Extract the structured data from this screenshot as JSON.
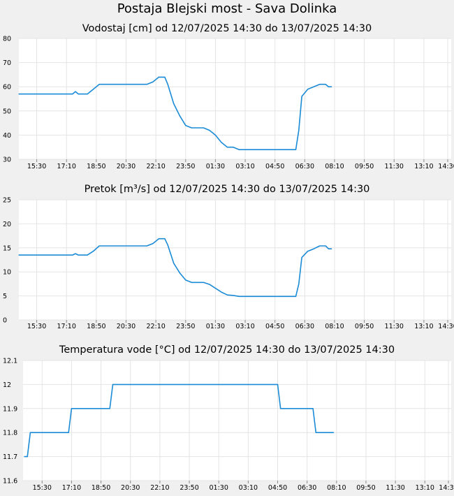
{
  "page": {
    "title": "Postaja Blejski most - Sava Dolinka"
  },
  "colors": {
    "line": "#1a8bd6",
    "plot_bg": "#ffffff",
    "page_bg": "#f0f0f0",
    "grid": "#e4e4e4"
  },
  "chart_data": [
    {
      "type": "line",
      "title": "Vodostaj [cm] od 12/07/2025 14:30 do 13/07/2025 14:30",
      "xlabel": "",
      "ylabel": "",
      "ylim": [
        30,
        80
      ],
      "yticks": [
        "30",
        "40",
        "50",
        "60",
        "70",
        "80"
      ],
      "xlim": [
        "12/07/2025 14:30",
        "13/07/2025 14:30"
      ],
      "xticks": [
        "15:30",
        "17:10",
        "18:50",
        "20:30",
        "22:10",
        "23:50",
        "01:30",
        "03:10",
        "04:50",
        "06:30",
        "08:10",
        "09:50",
        "11:30",
        "13:10",
        "14:30"
      ],
      "grid": true,
      "legend": "none",
      "series": [
        {
          "x": [
            "12/07/2025 14:30",
            "12/07/2025 17:30",
            "12/07/2025 17:40",
            "12/07/2025 17:50",
            "12/07/2025 18:20",
            "12/07/2025 18:40",
            "12/07/2025 19:00",
            "12/07/2025 21:40",
            "12/07/2025 22:00",
            "12/07/2025 22:20",
            "12/07/2025 22:40",
            "12/07/2025 22:50",
            "12/07/2025 23:10",
            "12/07/2025 23:30",
            "12/07/2025 23:50",
            "13/07/2025 00:10",
            "13/07/2025 00:50",
            "13/07/2025 01:10",
            "13/07/2025 01:30",
            "13/07/2025 01:50",
            "13/07/2025 02:10",
            "13/07/2025 02:30",
            "13/07/2025 02:50",
            "13/07/2025 03:10",
            "13/07/2025 06:00",
            "13/07/2025 06:10",
            "13/07/2025 06:20",
            "13/07/2025 06:40",
            "13/07/2025 07:00",
            "13/07/2025 07:20",
            "13/07/2025 07:40",
            "13/07/2025 07:50",
            "13/07/2025 08:00"
          ],
          "y": [
            57,
            57,
            58,
            57,
            57,
            59,
            61,
            61,
            62,
            64,
            64,
            61,
            53,
            48,
            44,
            43,
            43,
            42,
            40,
            37,
            35,
            35,
            34,
            34,
            34,
            42,
            56,
            59,
            60,
            61,
            61,
            60,
            60
          ]
        }
      ]
    },
    {
      "type": "line",
      "title": "Pretok [m³/s] od 12/07/2025 14:30 do 13/07/2025 14:30",
      "xlabel": "",
      "ylabel": "",
      "ylim": [
        0,
        25
      ],
      "yticks": [
        "0",
        "5",
        "10",
        "15",
        "20",
        "25"
      ],
      "xlim": [
        "12/07/2025 14:30",
        "13/07/2025 14:30"
      ],
      "xticks": [
        "15:30",
        "17:10",
        "18:50",
        "20:30",
        "22:10",
        "23:50",
        "01:30",
        "03:10",
        "04:50",
        "06:30",
        "08:10",
        "09:50",
        "11:30",
        "13:10",
        "14:30"
      ],
      "grid": true,
      "legend": "none",
      "series": [
        {
          "x": [
            "12/07/2025 14:30",
            "12/07/2025 17:30",
            "12/07/2025 17:40",
            "12/07/2025 17:50",
            "12/07/2025 18:20",
            "12/07/2025 18:40",
            "12/07/2025 19:00",
            "12/07/2025 21:40",
            "12/07/2025 22:00",
            "12/07/2025 22:20",
            "12/07/2025 22:40",
            "12/07/2025 22:50",
            "12/07/2025 23:10",
            "12/07/2025 23:30",
            "12/07/2025 23:50",
            "13/07/2025 00:10",
            "13/07/2025 00:50",
            "13/07/2025 01:10",
            "13/07/2025 01:30",
            "13/07/2025 01:50",
            "13/07/2025 02:10",
            "13/07/2025 02:30",
            "13/07/2025 02:50",
            "13/07/2025 03:10",
            "13/07/2025 06:00",
            "13/07/2025 06:10",
            "13/07/2025 06:20",
            "13/07/2025 06:40",
            "13/07/2025 07:00",
            "13/07/2025 07:20",
            "13/07/2025 07:40",
            "13/07/2025 07:50",
            "13/07/2025 08:00"
          ],
          "y": [
            13.5,
            13.5,
            13.8,
            13.5,
            13.5,
            14.3,
            15.4,
            15.4,
            15.9,
            16.9,
            16.9,
            15.6,
            11.8,
            9.8,
            8.3,
            7.8,
            7.8,
            7.4,
            6.6,
            5.8,
            5.2,
            5.1,
            4.9,
            4.9,
            4.9,
            7.5,
            13.0,
            14.3,
            14.8,
            15.4,
            15.4,
            14.8,
            14.8
          ]
        }
      ]
    },
    {
      "type": "line",
      "title": "Temperatura vode [°C] od 12/07/2025 14:30 do 13/07/2025 14:30",
      "xlabel": "",
      "ylabel": "",
      "ylim": [
        11.6,
        12.1
      ],
      "yticks": [
        "11.6",
        "11.7",
        "11.8",
        "11.9",
        "12",
        "12.1"
      ],
      "xlim": [
        "12/07/2025 14:30",
        "13/07/2025 14:30"
      ],
      "xticks": [
        "15:30",
        "17:10",
        "18:50",
        "20:30",
        "22:10",
        "23:50",
        "01:30",
        "03:10",
        "04:50",
        "06:30",
        "08:10",
        "09:50",
        "11:30",
        "13:10",
        "14:30"
      ],
      "grid": true,
      "legend": "none",
      "series": [
        {
          "x": [
            "12/07/2025 14:30",
            "12/07/2025 14:40",
            "12/07/2025 14:50",
            "12/07/2025 17:00",
            "12/07/2025 17:10",
            "12/07/2025 19:20",
            "12/07/2025 19:30",
            "13/07/2025 04:50",
            "13/07/2025 05:00",
            "13/07/2025 06:50",
            "13/07/2025 07:00",
            "13/07/2025 08:00"
          ],
          "y": [
            11.7,
            11.7,
            11.8,
            11.8,
            11.9,
            11.9,
            12.0,
            12.0,
            11.9,
            11.9,
            11.8,
            11.8
          ]
        }
      ]
    }
  ]
}
